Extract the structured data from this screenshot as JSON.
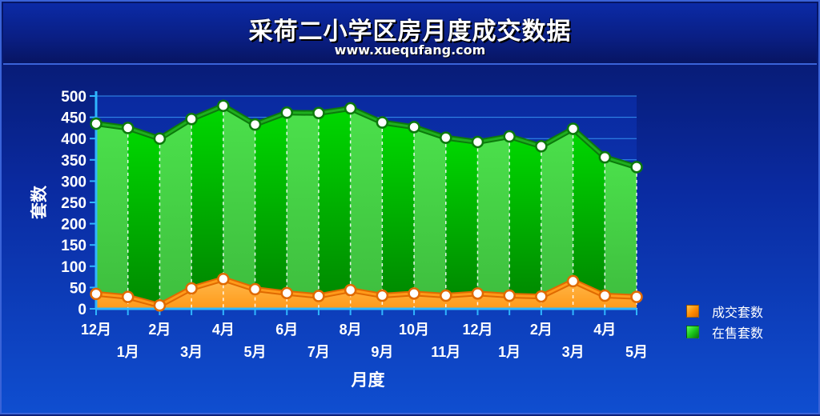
{
  "header": {
    "title": "采荷二小学区房月度成交数据",
    "subtitle": "www.xuequfang.com"
  },
  "chart_data": {
    "type": "area",
    "title": "采荷二小学区房月度成交数据",
    "subtitle": "www.xuequfang.com",
    "xlabel": "月度",
    "ylabel": "套数",
    "ylim": [
      0,
      500
    ],
    "yticks": [
      0,
      50,
      100,
      150,
      200,
      250,
      300,
      350,
      400,
      450,
      500
    ],
    "grid": true,
    "legend_position": "right-bottom",
    "categories": [
      "12月",
      "1月",
      "2月",
      "3月",
      "4月",
      "5月",
      "6月",
      "7月",
      "8月",
      "9月",
      "10月",
      "11月",
      "12月",
      "1月",
      "2月",
      "3月",
      "4月",
      "5月"
    ],
    "series": [
      {
        "name": "成交套数",
        "color": "#ff8a00",
        "values": [
          35,
          28,
          8,
          48,
          70,
          46,
          37,
          30,
          44,
          31,
          36,
          31,
          36,
          31,
          29,
          65,
          31,
          28
        ]
      },
      {
        "name": "在售套数",
        "color": "#19c419",
        "values": [
          435,
          425,
          400,
          446,
          477,
          433,
          461,
          460,
          471,
          438,
          427,
          402,
          392,
          405,
          382,
          423,
          356,
          333
        ]
      }
    ]
  },
  "legend": {
    "items": [
      {
        "label": "成交套数",
        "color": "orange"
      },
      {
        "label": "在售套数",
        "color": "green"
      }
    ]
  }
}
